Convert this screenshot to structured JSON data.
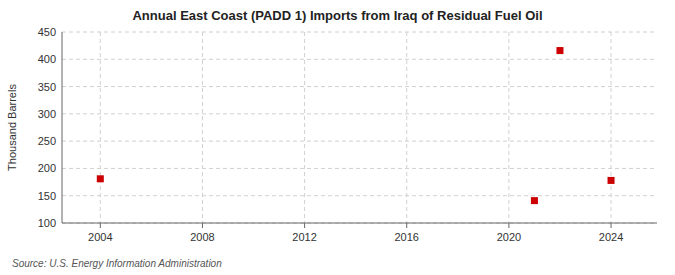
{
  "chart_data": {
    "type": "scatter",
    "title": "Annual East Coast (PADD 1) Imports from Iraq of Residual Fuel Oil",
    "ylabel": "Thousand Barrels",
    "source": "Source: U.S. Energy Information Administration",
    "x": [
      2004,
      2021,
      2022,
      2024
    ],
    "values": [
      181,
      141,
      416,
      178
    ],
    "color": "#cc0000",
    "marker": "square",
    "xlim": [
      2002.5,
      2025.8
    ],
    "ylim": [
      100,
      450
    ],
    "xticks": [
      2004,
      2008,
      2012,
      2016,
      2020,
      2024
    ],
    "yticks": [
      100,
      150,
      200,
      250,
      300,
      350,
      400,
      450
    ],
    "grid": true
  }
}
